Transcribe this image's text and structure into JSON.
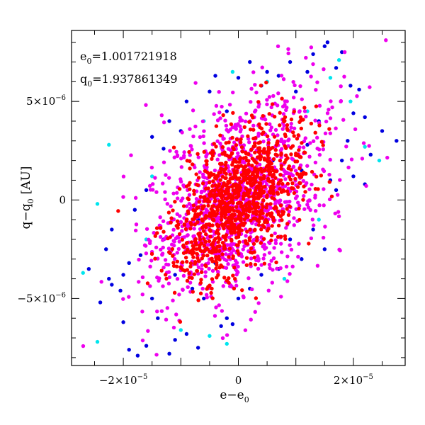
{
  "chart_data": {
    "type": "scatter",
    "title": "",
    "xlabel_main": "e−e",
    "xlabel_sub": "0",
    "ylabel_main": "q−q",
    "ylabel_sub": "0",
    "ylabel_unit": "[AU]",
    "xlim": [
      -2.9e-05,
      2.9e-05
    ],
    "ylim": [
      -8.4e-06,
      8.6e-06
    ],
    "x_ticks": [
      {
        "value": -2e-05,
        "mant": "−2×10",
        "exp": "−5"
      },
      {
        "value": 0,
        "mant": "0",
        "exp": ""
      },
      {
        "value": 2e-05,
        "mant": "2×10",
        "exp": "−5"
      }
    ],
    "y_ticks": [
      {
        "value": 5e-06,
        "mant": "5×10",
        "exp": "−6"
      },
      {
        "value": 0,
        "mant": "0",
        "exp": ""
      },
      {
        "value": -5e-06,
        "mant": "−5×10",
        "exp": "−6"
      }
    ],
    "annotations": [
      {
        "main": "e",
        "sub": "0",
        "value": "=1.001721918"
      },
      {
        "main": "q",
        "sub": "0",
        "value": "=1.937861349"
      }
    ],
    "grid": false,
    "legend": "none",
    "series": [
      {
        "color": "#00e5ee",
        "points": [
          [
            -2.25e-05,
            2.8e-06
          ],
          [
            -2.45e-05,
            -2e-07
          ],
          [
            -2.7e-05,
            -3.7e-06
          ],
          [
            -2.45e-05,
            -7.2e-06
          ],
          [
            -1.5e-05,
            1.2e-06
          ],
          [
            -1e-05,
            -6.6e-06
          ],
          [
            -5e-06,
            -6.9e-06
          ],
          [
            -2e-06,
            -7.3e-06
          ],
          [
            -1e-06,
            6.5e-06
          ],
          [
            5e-06,
            6e-06
          ],
          [
            1.4e-05,
            -1e-06
          ],
          [
            1.6e-05,
            6.2e-06
          ],
          [
            1.75e-05,
            7.1e-06
          ],
          [
            1.95e-05,
            5e-06
          ],
          [
            2.2e-05,
            2.7e-06
          ],
          [
            2.45e-05,
            2e-06
          ],
          [
            -6e-06,
            4e-06
          ],
          [
            8e-06,
            -4e-06
          ],
          [
            1.2e-05,
            4.5e-06
          ],
          [
            -1.6e-05,
            -2e-06
          ]
        ]
      },
      {
        "color": "#0000e0",
        "points": [
          [
            -2.2e-05,
            -4.3e-06
          ],
          [
            -2.25e-05,
            -4e-06
          ],
          [
            -2.05e-05,
            -4.6e-06
          ],
          [
            -2.4e-05,
            -5.2e-06
          ],
          [
            -2e-05,
            -6.2e-06
          ],
          [
            -1.9e-05,
            -7.6e-06
          ],
          [
            -1.75e-05,
            -7.9e-06
          ],
          [
            -1.6e-05,
            -7.4e-06
          ],
          [
            -1.5e-05,
            -5e-06
          ],
          [
            -1.4e-05,
            -6e-06
          ],
          [
            -1.2e-05,
            -7.8e-06
          ],
          [
            -1.1e-05,
            -7.1e-06
          ],
          [
            -9e-06,
            -6.8e-06
          ],
          [
            -7e-06,
            -7.5e-06
          ],
          [
            -3e-06,
            -6.4e-06
          ],
          [
            -1e-06,
            -6.3e-06
          ],
          [
            -2.6e-05,
            -3.5e-06
          ],
          [
            -2.2e-05,
            -1.5e-06
          ],
          [
            -1.8e-05,
            -5e-07
          ],
          [
            -1.6e-05,
            5e-07
          ],
          [
            -1.5e-05,
            3.2e-06
          ],
          [
            -1.3e-05,
            2.6e-06
          ],
          [
            -1.2e-05,
            4e-06
          ],
          [
            -1e-05,
            3.5e-06
          ],
          [
            -1.3e-05,
            -2e-06
          ],
          [
            -1.1e-05,
            -3.8e-06
          ],
          [
            -8e-06,
            -4.5e-06
          ],
          [
            -6e-06,
            -5e-06
          ],
          [
            -4e-06,
            -3.2e-06
          ],
          [
            -9e-06,
            5e-06
          ],
          [
            -5e-06,
            5.5e-06
          ],
          [
            -2e-06,
            4.5e-06
          ],
          [
            0.0,
            6.2e-06
          ],
          [
            2e-06,
            7e-06
          ],
          [
            4e-06,
            5.8e-06
          ],
          [
            5e-06,
            6.5e-06
          ],
          [
            7e-06,
            6.3e-06
          ],
          [
            9e-06,
            7e-06
          ],
          [
            1e-05,
            5.5e-06
          ],
          [
            1.2e-05,
            6.5e-06
          ],
          [
            1.3e-05,
            7.4e-06
          ],
          [
            1.5e-05,
            7.8e-06
          ],
          [
            1.55e-05,
            8e-06
          ],
          [
            1.7e-05,
            6.7e-06
          ],
          [
            1.8e-05,
            7.5e-06
          ],
          [
            1.95e-05,
            5.8e-06
          ],
          [
            2e-05,
            4.4e-06
          ],
          [
            2.1e-05,
            5.6e-06
          ],
          [
            2.2e-05,
            4.2e-06
          ],
          [
            2.3e-05,
            2.3e-06
          ],
          [
            2.5e-05,
            3.5e-06
          ],
          [
            2.75e-05,
            3e-06
          ],
          [
            1.5e-05,
            -2.5e-06
          ],
          [
            1.3e-05,
            -1.5e-06
          ],
          [
            1.1e-05,
            -3e-06
          ],
          [
            9e-06,
            -2e-06
          ],
          [
            1.6e-05,
            1e-06
          ],
          [
            1.8e-05,
            2e-06
          ],
          [
            1.7e-05,
            5e-07
          ],
          [
            1.9e-05,
            3e-06
          ],
          [
            2e-05,
            1.2e-06
          ],
          [
            2.2e-05,
            8e-07
          ],
          [
            1.4e-05,
            4e-06
          ],
          [
            1.2e-05,
            2.8e-06
          ],
          [
            -3e-06,
            1.5e-06
          ],
          [
            3e-06,
            -1e-06
          ],
          [
            6e-06,
            2e-06
          ],
          [
            -7e-06,
            -1e-06
          ],
          [
            -1.9e-05,
            -3.2e-06
          ],
          [
            -1.7e-05,
            -2.8e-06
          ],
          [
            -2.3e-05,
            -2.5e-06
          ],
          [
            -2e-05,
            -3.8e-06
          ],
          [
            2e-06,
            -4.5e-06
          ],
          [
            4e-06,
            -3.8e-06
          ],
          [
            7e-06,
            -3.5e-06
          ],
          [
            0.0,
            -5e-06
          ],
          [
            -2e-06,
            -6e-06
          ],
          [
            -4e-06,
            6.3e-06
          ],
          [
            8e-06,
            4e-06
          ],
          [
            1.1e-05,
            1.5e-06
          ]
        ]
      }
    ],
    "clusters": [
      {
        "color": "#ee00ee",
        "count": 1150,
        "sx": 8.2e-06,
        "sy": 2.85e-06,
        "rho": 0.5
      },
      {
        "color": "#ff0000",
        "count": 1050,
        "sx": 5.8e-06,
        "sy": 2e-06,
        "rho": 0.55
      }
    ]
  }
}
